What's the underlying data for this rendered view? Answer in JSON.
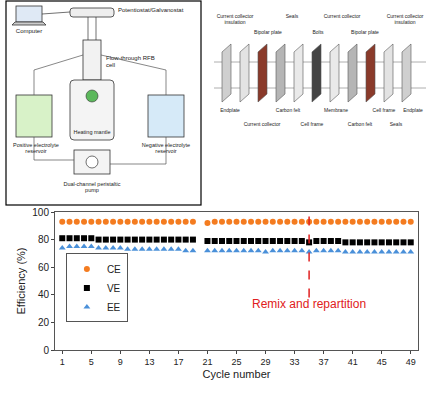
{
  "chart_data": {
    "type": "scatter",
    "x_label": "Cycle number",
    "y_label": "Efficiency (%)",
    "x": [
      1,
      2,
      3,
      4,
      5,
      6,
      7,
      8,
      9,
      10,
      11,
      12,
      13,
      14,
      15,
      16,
      17,
      18,
      19,
      20,
      21,
      22,
      23,
      24,
      25,
      26,
      27,
      28,
      29,
      30,
      31,
      32,
      33,
      34,
      35,
      36,
      37,
      38,
      39,
      40,
      41,
      42,
      43,
      44,
      45,
      46,
      47,
      48,
      49
    ],
    "series": [
      {
        "name": "CE",
        "color": "#f47c20",
        "marker": "circle",
        "values": [
          93,
          93,
          93,
          93,
          93,
          93,
          93,
          93,
          93,
          93,
          93,
          93,
          93,
          93,
          93,
          93,
          93,
          93,
          93,
          null,
          92,
          93,
          93,
          93,
          93,
          93,
          93,
          93,
          93,
          93,
          93,
          93,
          93,
          93,
          93,
          93,
          93,
          93,
          93,
          93,
          93,
          93,
          93,
          93,
          93,
          93,
          93,
          93,
          93
        ]
      },
      {
        "name": "VE",
        "color": "#000000",
        "marker": "square",
        "values": [
          81,
          81,
          81,
          81,
          81,
          80,
          80,
          80,
          80,
          80,
          80,
          80,
          80,
          80,
          80,
          80,
          80,
          80,
          80,
          null,
          79,
          79,
          79,
          79,
          79,
          79,
          79,
          79,
          79,
          79,
          79,
          79,
          79,
          79,
          78,
          79,
          79,
          79,
          79,
          78,
          78,
          78,
          78,
          78,
          78,
          78,
          78,
          78,
          78
        ]
      },
      {
        "name": "EE",
        "color": "#4a90d9",
        "marker": "triangle-up",
        "values": [
          74,
          75,
          75,
          75,
          75,
          74,
          74,
          74,
          74,
          73,
          73,
          73,
          73,
          73,
          73,
          73,
          73,
          72,
          72,
          null,
          72,
          72,
          72,
          72,
          72,
          72,
          72,
          72,
          71,
          72,
          72,
          72,
          72,
          72,
          71,
          72,
          72,
          72,
          72,
          71,
          71,
          71,
          71,
          71,
          71,
          71,
          71,
          71,
          71
        ]
      }
    ],
    "xlim": [
      0,
      50
    ],
    "xticks": [
      1,
      5,
      9,
      13,
      17,
      21,
      25,
      29,
      33,
      37,
      41,
      45,
      49
    ],
    "ylim": [
      0,
      100
    ],
    "yticks": [
      0,
      20,
      40,
      60,
      80,
      100
    ],
    "grid": false,
    "legend": "left",
    "vlines": [
      {
        "x": 35,
        "ymin": 38,
        "color": "#e02020",
        "line_style": "dash"
      }
    ],
    "annotations": [
      {
        "text": "Remix and repartition",
        "x": 35,
        "y": 33,
        "color": "#e02020"
      }
    ]
  },
  "schematic": {
    "computer": "Computer",
    "potentiostat": "Potentiostat/Galvanostat",
    "cell": "Flow-through RFB cell",
    "heater": "Heating mantle",
    "positive": "Positive electrolyte reservoir",
    "negative": "Negative electrolyte reservoir",
    "pump": "Dual-channel peristaltic pump"
  },
  "exploded_view": {
    "labels": [
      "Current collector insulation",
      "Bipolar plate",
      "Seals",
      "Bolts",
      "Current collector",
      "Bipolar plate",
      "Current collector insulation",
      "Carbon felt",
      "Cell frame",
      "Endplate",
      "Current collector",
      "Membrane",
      "Carbon felt",
      "Cell frame",
      "Seals",
      "Endplate"
    ]
  }
}
